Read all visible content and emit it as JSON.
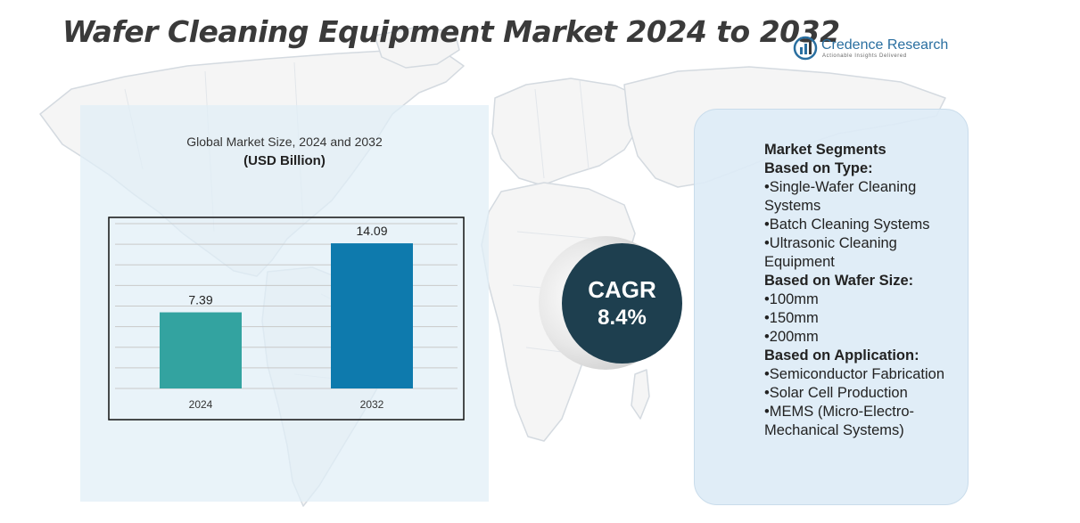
{
  "title": "Wafer Cleaning Equipment Market 2024 to 2032",
  "logo": {
    "name": "Credence Research",
    "tagline": "Actionable Insights Delivered"
  },
  "chart_data": {
    "type": "bar",
    "title": "Global Market Size, 2024 and 2032",
    "subtitle": "(USD Billion)",
    "categories": [
      "2024",
      "2032"
    ],
    "values": [
      7.39,
      14.09
    ],
    "data_labels": [
      "7.39",
      "14.09"
    ],
    "colors": [
      "#33a3a0",
      "#0e7aad"
    ],
    "xlabel": "",
    "ylabel": "",
    "ylim": [
      0,
      16
    ],
    "grid": true,
    "gridlines": [
      0,
      2,
      4,
      6,
      8,
      10,
      12,
      14,
      16
    ]
  },
  "cagr": {
    "label": "CAGR",
    "value": "8.4%"
  },
  "segments": {
    "items": [
      {
        "text": "Market Segments",
        "heading": true
      },
      {
        "text": "Based on Type:",
        "heading": true
      },
      {
        "text": "•Single-Wafer Cleaning Systems",
        "heading": false
      },
      {
        "text": "•Batch Cleaning Systems",
        "heading": false
      },
      {
        "text": "•Ultrasonic Cleaning Equipment",
        "heading": false
      },
      {
        "text": "Based on Wafer Size:",
        "heading": true
      },
      {
        "text": "•100mm",
        "heading": false
      },
      {
        "text": "•150mm",
        "heading": false
      },
      {
        "text": "•200mm",
        "heading": false
      },
      {
        "text": "Based on Application:",
        "heading": true
      },
      {
        "text": "•Semiconductor Fabrication",
        "heading": false
      },
      {
        "text": "•Solar Cell Production",
        "heading": false
      },
      {
        "text": "•MEMS (Micro-Electro-Mechanical Systems)",
        "heading": false
      }
    ]
  },
  "colors": {
    "title": "#3a3a3a",
    "cagr_circle": "#1e3f4f",
    "panel": "#e1eef7",
    "logo": "#2a6fa0"
  }
}
